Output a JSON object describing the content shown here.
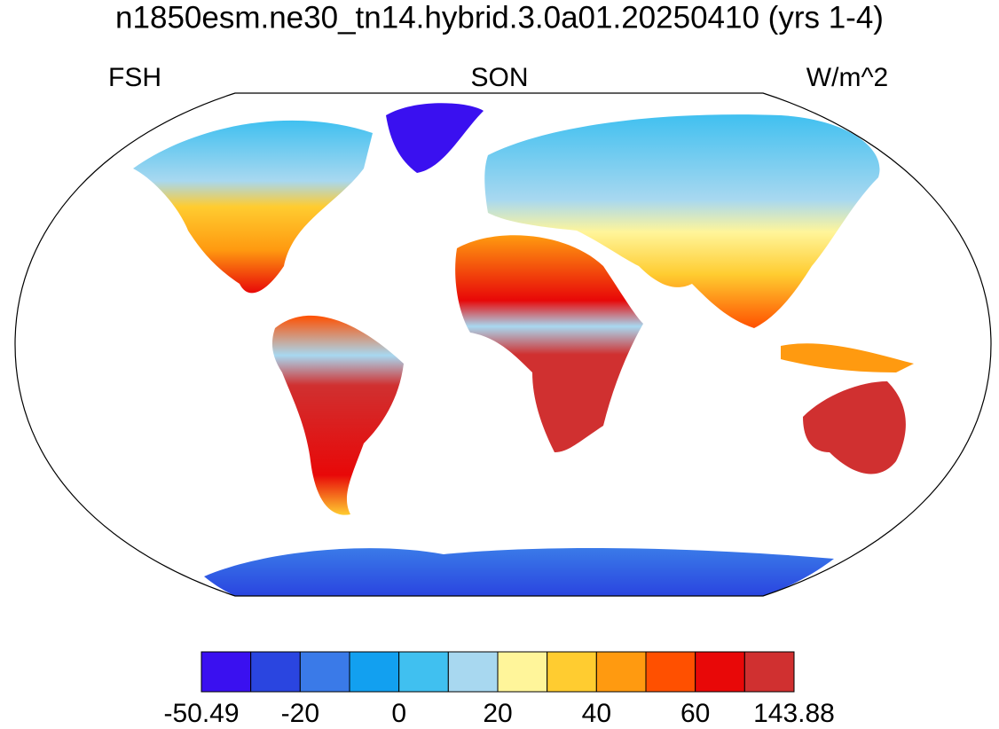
{
  "title": "n1850esm.ne30_tn14.hybrid.3.0a01.20250410 (yrs 1-4)",
  "left_label": "FSH",
  "center_label": "SON",
  "right_label": "W/m^2",
  "colorbar": {
    "colors": [
      "#3a10f0",
      "#2a45e0",
      "#3a7ae8",
      "#12a0f0",
      "#40c0f0",
      "#a8d8f0",
      "#fff59a",
      "#ffcc30",
      "#ff9a10",
      "#ff5000",
      "#e80808",
      "#d03030"
    ],
    "labels": [
      -50.49,
      -20,
      0,
      20,
      40,
      60,
      143.88
    ]
  }
}
